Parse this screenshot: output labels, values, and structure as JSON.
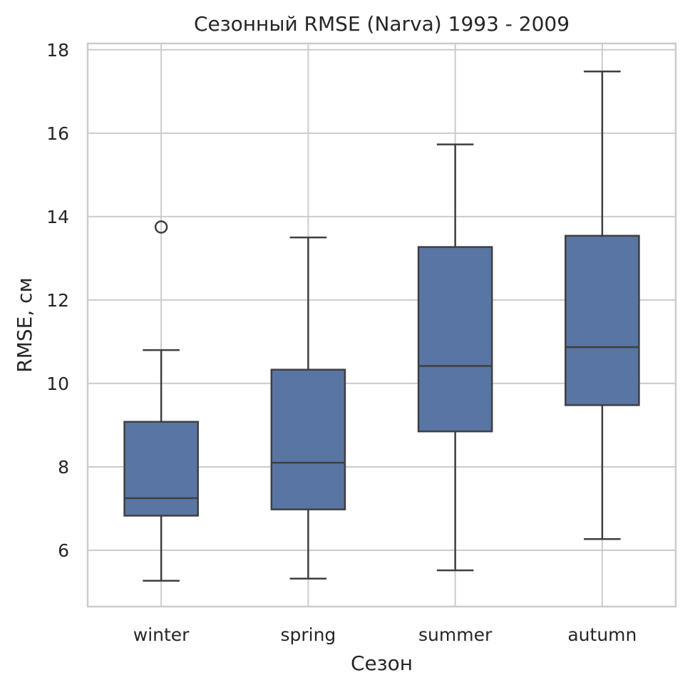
{
  "chart_data": {
    "type": "box",
    "title": "Сезонный RMSE (Narva) 1993 - 2009",
    "xlabel": "Сезон",
    "ylabel": "RMSE, см",
    "ylim": [
      4.65,
      18.15
    ],
    "yticks": [
      6,
      8,
      10,
      12,
      14,
      16,
      18
    ],
    "grid": true,
    "categories": [
      "winter",
      "spring",
      "summer",
      "autumn"
    ],
    "boxes": [
      {
        "category": "winter",
        "whisker_low": 5.27,
        "q1": 6.83,
        "median": 7.25,
        "q3": 9.08,
        "whisker_high": 10.8,
        "outliers": [
          13.75
        ]
      },
      {
        "category": "spring",
        "whisker_low": 5.32,
        "q1": 6.98,
        "median": 8.1,
        "q3": 10.33,
        "whisker_high": 13.5,
        "outliers": []
      },
      {
        "category": "summer",
        "whisker_low": 5.52,
        "q1": 8.85,
        "median": 10.42,
        "q3": 13.27,
        "whisker_high": 15.73,
        "outliers": []
      },
      {
        "category": "autumn",
        "whisker_low": 6.27,
        "q1": 9.48,
        "median": 10.87,
        "q3": 13.54,
        "whisker_high": 17.48,
        "outliers": []
      }
    ],
    "colors": {
      "box_fill": "#5975a4",
      "line": "#3f3f3f",
      "grid": "#cccccc",
      "spine": "#cccccc"
    }
  }
}
